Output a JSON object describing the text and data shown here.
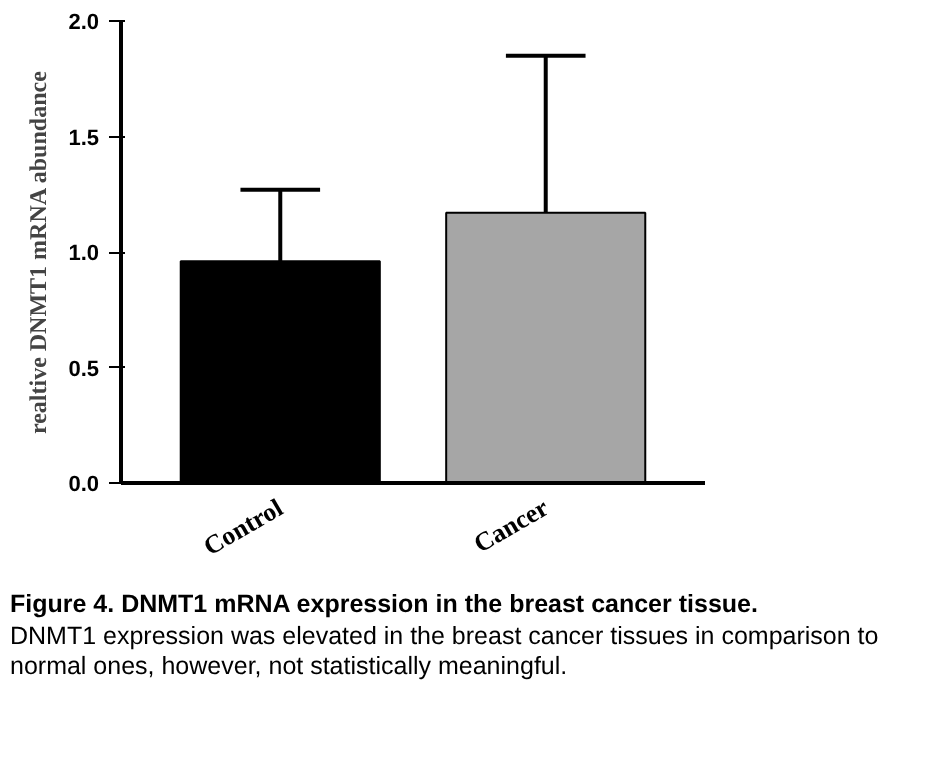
{
  "chart_data": {
    "type": "bar",
    "categories": [
      "Control",
      "Cancer"
    ],
    "values": [
      0.96,
      1.17
    ],
    "colors": [
      "#000000",
      "#a6a6a6"
    ],
    "errors": [
      [
        0.96,
        1.27
      ],
      [
        1.17,
        1.85
      ]
    ],
    "ylabel": "realtive DNMT1 mRNA abundance",
    "ylim": [
      0,
      2.0
    ],
    "yticks": [
      {
        "value": 0,
        "label": "0.0"
      },
      {
        "value": 0.5,
        "label": "0.5"
      },
      {
        "value": 1.0,
        "label": "1.0"
      },
      {
        "value": 1.5,
        "label": "1.5"
      },
      {
        "value": 2.0,
        "label": "2.0"
      }
    ],
    "grid": false,
    "title": "Figure 4. DNMT1 mRNA expression in the breast cancer tissue.",
    "annotations": [
      "DNMT1 expression was elevated in the breast cancer tissues in comparison to normal ones, however, not statistically meaningful."
    ]
  }
}
